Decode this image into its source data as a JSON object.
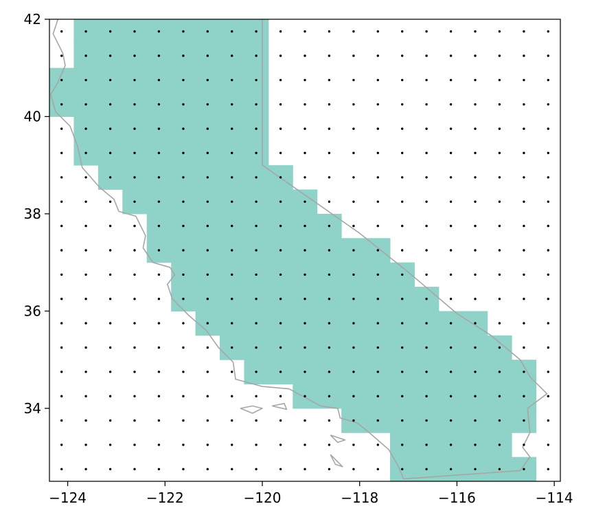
{
  "chart_data": {
    "type": "heatmap",
    "title": "",
    "xlabel": "",
    "ylabel": "",
    "xlim": [
      -124.375,
      -113.875
    ],
    "ylim": [
      32.5,
      42.0
    ],
    "x_ticks": [
      {
        "value": -124,
        "label": "−124"
      },
      {
        "value": -122,
        "label": "−122"
      },
      {
        "value": -120,
        "label": "−120"
      },
      {
        "value": -118,
        "label": "−118"
      },
      {
        "value": -116,
        "label": "−116"
      },
      {
        "value": -114,
        "label": "−114"
      }
    ],
    "y_ticks": [
      {
        "value": 34,
        "label": "34"
      },
      {
        "value": 36,
        "label": "36"
      },
      {
        "value": 38,
        "label": "38"
      },
      {
        "value": 40,
        "label": "40"
      },
      {
        "value": 42,
        "label": "42"
      }
    ],
    "grid": false,
    "legend": "none",
    "grid_cells": {
      "lon_start": -124.375,
      "lon_step": 0.5,
      "lat_start": 32.5,
      "lat_step": 0.5,
      "n_cols": 21,
      "n_rows": 19
    },
    "mask_runs_note": "Each row is a latitude band [lat, lat+0.5]; runs are [west_lon, east_lon] of filled cells.",
    "mask_rows": [
      {
        "lat": 41.5,
        "runs": [
          [
            -123.875,
            -119.875
          ]
        ]
      },
      {
        "lat": 41.0,
        "runs": [
          [
            -123.875,
            -119.875
          ]
        ]
      },
      {
        "lat": 40.5,
        "runs": [
          [
            -124.375,
            -119.875
          ]
        ]
      },
      {
        "lat": 40.0,
        "runs": [
          [
            -124.375,
            -119.875
          ]
        ]
      },
      {
        "lat": 39.5,
        "runs": [
          [
            -123.875,
            -119.875
          ]
        ]
      },
      {
        "lat": 39.0,
        "runs": [
          [
            -123.875,
            -119.875
          ]
        ]
      },
      {
        "lat": 38.5,
        "runs": [
          [
            -123.375,
            -119.375
          ]
        ]
      },
      {
        "lat": 38.0,
        "runs": [
          [
            -122.875,
            -118.875
          ]
        ]
      },
      {
        "lat": 37.5,
        "runs": [
          [
            -122.375,
            -118.375
          ]
        ]
      },
      {
        "lat": 37.0,
        "runs": [
          [
            -122.375,
            -117.375
          ]
        ]
      },
      {
        "lat": 36.5,
        "runs": [
          [
            -121.875,
            -116.875
          ]
        ]
      },
      {
        "lat": 36.0,
        "runs": [
          [
            -121.875,
            -116.375
          ]
        ]
      },
      {
        "lat": 35.5,
        "runs": [
          [
            -121.375,
            -115.375
          ]
        ]
      },
      {
        "lat": 35.0,
        "runs": [
          [
            -120.875,
            -114.875
          ]
        ]
      },
      {
        "lat": 34.5,
        "runs": [
          [
            -120.375,
            -114.375
          ]
        ]
      },
      {
        "lat": 34.0,
        "runs": [
          [
            -119.375,
            -114.375
          ]
        ]
      },
      {
        "lat": 33.5,
        "runs": [
          [
            -118.375,
            -114.375
          ]
        ]
      },
      {
        "lat": 33.0,
        "runs": [
          [
            -117.375,
            -114.875
          ]
        ]
      },
      {
        "lat": 32.5,
        "runs": [
          [
            -117.375,
            -114.375
          ]
        ]
      }
    ],
    "point_grid": {
      "lons": [
        -124.125,
        -123.625,
        -123.125,
        -122.625,
        -122.125,
        -121.625,
        -121.125,
        -120.625,
        -120.125,
        -119.625,
        -119.125,
        -118.625,
        -118.125,
        -117.625,
        -117.125,
        -116.625,
        -116.125,
        -115.625,
        -115.125,
        -114.625,
        -114.125
      ],
      "lats": [
        32.75,
        33.25,
        33.75,
        34.25,
        34.75,
        35.25,
        35.75,
        36.25,
        36.75,
        37.25,
        37.75,
        38.25,
        38.75,
        39.25,
        39.75,
        40.25,
        40.75,
        41.25,
        41.75
      ]
    },
    "boundary": [
      [
        -124.2,
        42.0
      ],
      [
        -124.3,
        41.7
      ],
      [
        -124.1,
        41.3
      ],
      [
        -124.05,
        41.05
      ],
      [
        -124.2,
        40.7
      ],
      [
        -124.35,
        40.45
      ],
      [
        -124.25,
        40.1
      ],
      [
        -123.95,
        39.8
      ],
      [
        -123.8,
        39.4
      ],
      [
        -123.7,
        38.95
      ],
      [
        -123.35,
        38.55
      ],
      [
        -123.05,
        38.3
      ],
      [
        -122.95,
        38.05
      ],
      [
        -122.6,
        37.95
      ],
      [
        -122.5,
        37.75
      ],
      [
        -122.4,
        37.55
      ],
      [
        -122.45,
        37.3
      ],
      [
        -122.25,
        37.0
      ],
      [
        -121.9,
        36.9
      ],
      [
        -121.8,
        36.75
      ],
      [
        -121.95,
        36.55
      ],
      [
        -121.85,
        36.25
      ],
      [
        -121.5,
        35.9
      ],
      [
        -121.15,
        35.6
      ],
      [
        -120.9,
        35.25
      ],
      [
        -120.6,
        34.95
      ],
      [
        -120.55,
        34.6
      ],
      [
        -120.0,
        34.45
      ],
      [
        -119.45,
        34.4
      ],
      [
        -118.8,
        34.05
      ],
      [
        -118.45,
        34.0
      ],
      [
        -118.4,
        33.8
      ],
      [
        -118.05,
        33.7
      ],
      [
        -117.8,
        33.5
      ],
      [
        -117.4,
        33.15
      ],
      [
        -117.2,
        32.8
      ],
      [
        -117.1,
        32.55
      ],
      [
        -114.7,
        32.72
      ],
      [
        -114.5,
        33.0
      ],
      [
        -114.65,
        33.2
      ],
      [
        -114.5,
        33.5
      ],
      [
        -114.55,
        34.0
      ],
      [
        -114.15,
        34.3
      ],
      [
        -114.5,
        34.65
      ],
      [
        -114.7,
        35.0
      ],
      [
        -115.3,
        35.5
      ],
      [
        -116.0,
        35.95
      ],
      [
        -117.0,
        36.8
      ],
      [
        -118.0,
        37.6
      ],
      [
        -119.0,
        38.3
      ],
      [
        -120.0,
        39.0
      ],
      [
        -120.0,
        42.0
      ]
    ],
    "islands": [
      [
        [
          -120.45,
          34.0
        ],
        [
          -120.2,
          34.05
        ],
        [
          -120.0,
          34.0
        ],
        [
          -120.2,
          33.9
        ],
        [
          -120.45,
          34.0
        ]
      ],
      [
        [
          -119.8,
          34.05
        ],
        [
          -119.55,
          34.1
        ],
        [
          -119.5,
          33.98
        ],
        [
          -119.8,
          34.05
        ]
      ],
      [
        [
          -118.6,
          33.45
        ],
        [
          -118.3,
          33.35
        ],
        [
          -118.45,
          33.3
        ],
        [
          -118.6,
          33.45
        ]
      ],
      [
        [
          -118.6,
          33.05
        ],
        [
          -118.35,
          32.8
        ],
        [
          -118.5,
          32.85
        ],
        [
          -118.6,
          33.05
        ]
      ]
    ],
    "colors": {
      "mask_fill": "#8fd3c8",
      "points": "#000000",
      "boundary": "#a6a6a6",
      "frame": "#000000"
    }
  }
}
